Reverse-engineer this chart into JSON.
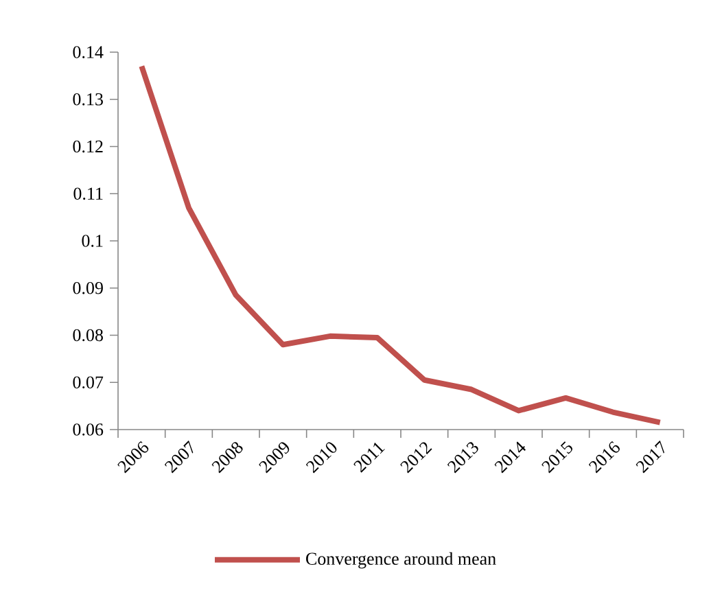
{
  "chart_data": {
    "type": "line",
    "categories": [
      "2006",
      "2007",
      "2008",
      "2009",
      "2010",
      "2011",
      "2012",
      "2013",
      "2014",
      "2015",
      "2016",
      "2017"
    ],
    "series": [
      {
        "name": "Convergence around mean",
        "color": "#c0504d",
        "values": [
          0.137,
          0.107,
          0.0885,
          0.078,
          0.0798,
          0.0795,
          0.0705,
          0.0685,
          0.064,
          0.0667,
          0.0637,
          0.0615
        ]
      }
    ],
    "ylim": [
      0.06,
      0.14
    ],
    "yticks": [
      0.06,
      0.07,
      0.08,
      0.09,
      0.1,
      0.11,
      0.12,
      0.13,
      0.14
    ],
    "grid": false,
    "legend": "bottom",
    "marker": "none",
    "line_style": "solid"
  }
}
